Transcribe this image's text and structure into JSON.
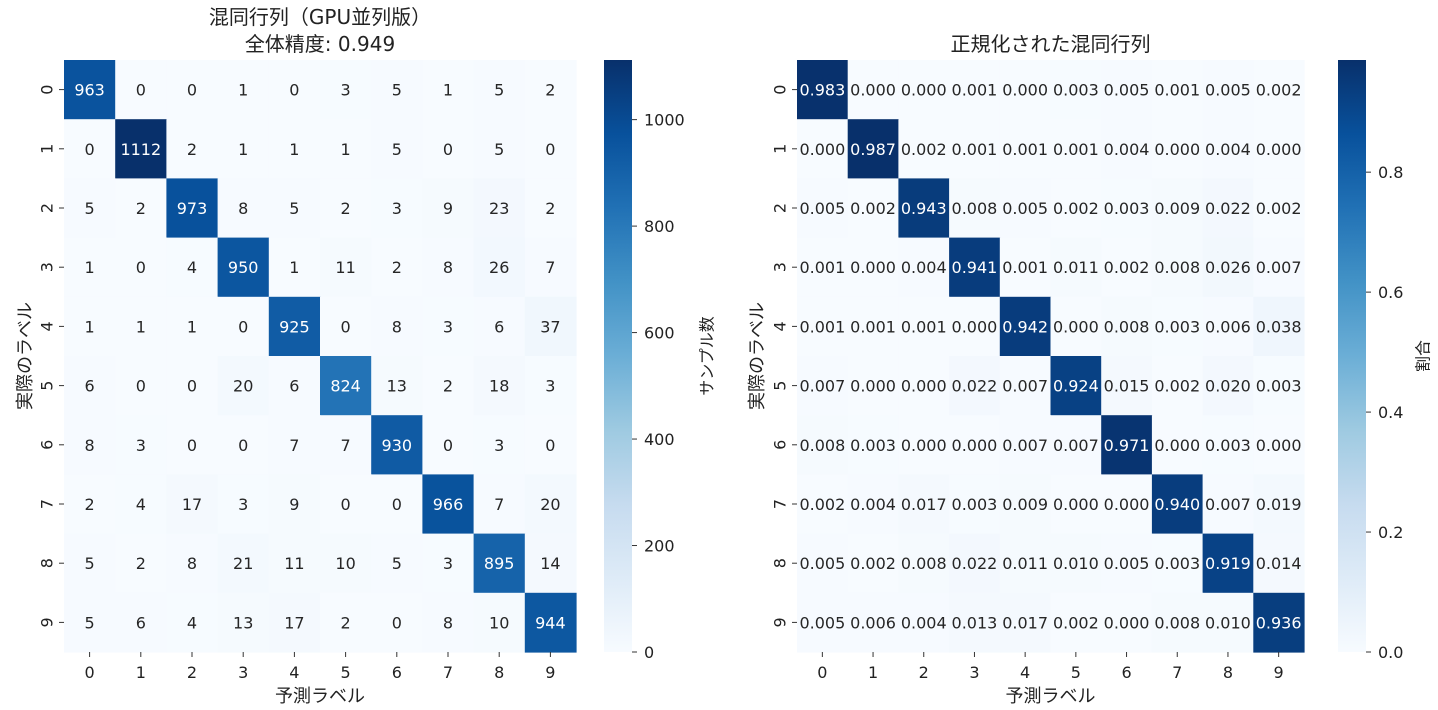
{
  "chart_data": [
    {
      "type": "heatmap",
      "title_line1": "混同行列（GPU並列版）",
      "title_line2": "全体精度: 0.949",
      "xlabel": "予測ラベル",
      "ylabel": "実際のラベル",
      "x_categories": [
        "0",
        "1",
        "2",
        "3",
        "4",
        "5",
        "6",
        "7",
        "8",
        "9"
      ],
      "y_categories": [
        "0",
        "1",
        "2",
        "3",
        "4",
        "5",
        "6",
        "7",
        "8",
        "9"
      ],
      "values": [
        [
          963,
          0,
          0,
          1,
          0,
          3,
          5,
          1,
          5,
          2
        ],
        [
          0,
          1112,
          2,
          1,
          1,
          1,
          5,
          0,
          5,
          0
        ],
        [
          5,
          2,
          973,
          8,
          5,
          2,
          3,
          9,
          23,
          2
        ],
        [
          1,
          0,
          4,
          950,
          1,
          11,
          2,
          8,
          26,
          7
        ],
        [
          1,
          1,
          1,
          0,
          925,
          0,
          8,
          3,
          6,
          37
        ],
        [
          6,
          0,
          0,
          20,
          6,
          824,
          13,
          2,
          18,
          3
        ],
        [
          8,
          3,
          0,
          0,
          7,
          7,
          930,
          0,
          3,
          0
        ],
        [
          2,
          4,
          17,
          3,
          9,
          0,
          0,
          966,
          7,
          20
        ],
        [
          5,
          2,
          8,
          21,
          11,
          10,
          5,
          3,
          895,
          14
        ],
        [
          5,
          6,
          4,
          13,
          17,
          2,
          0,
          8,
          10,
          944
        ]
      ],
      "value_format": "int",
      "colorbar": {
        "label": "サンプル数",
        "min": 0,
        "max": 1112,
        "ticks": [
          0,
          200,
          400,
          600,
          800,
          1000
        ]
      },
      "colormap": "Blues"
    },
    {
      "type": "heatmap",
      "title_line1": "正規化された混同行列",
      "title_line2": "",
      "xlabel": "予測ラベル",
      "ylabel": "実際のラベル",
      "x_categories": [
        "0",
        "1",
        "2",
        "3",
        "4",
        "5",
        "6",
        "7",
        "8",
        "9"
      ],
      "y_categories": [
        "0",
        "1",
        "2",
        "3",
        "4",
        "5",
        "6",
        "7",
        "8",
        "9"
      ],
      "values": [
        [
          0.983,
          0.0,
          0.0,
          0.001,
          0.0,
          0.003,
          0.005,
          0.001,
          0.005,
          0.002
        ],
        [
          0.0,
          0.987,
          0.002,
          0.001,
          0.001,
          0.001,
          0.004,
          0.0,
          0.004,
          0.0
        ],
        [
          0.005,
          0.002,
          0.943,
          0.008,
          0.005,
          0.002,
          0.003,
          0.009,
          0.022,
          0.002
        ],
        [
          0.001,
          0.0,
          0.004,
          0.941,
          0.001,
          0.011,
          0.002,
          0.008,
          0.026,
          0.007
        ],
        [
          0.001,
          0.001,
          0.001,
          0.0,
          0.942,
          0.0,
          0.008,
          0.003,
          0.006,
          0.038
        ],
        [
          0.007,
          0.0,
          0.0,
          0.022,
          0.007,
          0.924,
          0.015,
          0.002,
          0.02,
          0.003
        ],
        [
          0.008,
          0.003,
          0.0,
          0.0,
          0.007,
          0.007,
          0.971,
          0.0,
          0.003,
          0.0
        ],
        [
          0.002,
          0.004,
          0.017,
          0.003,
          0.009,
          0.0,
          0.0,
          0.94,
          0.007,
          0.019
        ],
        [
          0.005,
          0.002,
          0.008,
          0.022,
          0.011,
          0.01,
          0.005,
          0.003,
          0.919,
          0.014
        ],
        [
          0.005,
          0.006,
          0.004,
          0.013,
          0.017,
          0.002,
          0.0,
          0.008,
          0.01,
          0.936
        ]
      ],
      "value_format": "3dp",
      "colorbar": {
        "label": "割合",
        "min": 0,
        "max": 0.987,
        "ticks": [
          0.0,
          0.2,
          0.4,
          0.6,
          0.8
        ]
      },
      "colormap": "Blues"
    }
  ]
}
